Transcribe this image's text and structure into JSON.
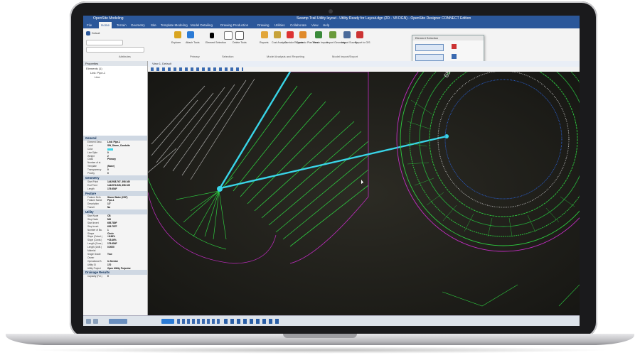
{
  "window": {
    "app_name": "OpenSite Modeling",
    "title": "Swamp Trail Utility layout - Utility Ready for Layout.dgn (2D - V8 DGN) - OpenSite Designer CONNECT Edition"
  },
  "ribbon": {
    "tabs": [
      "File",
      "Home",
      "Terrain",
      "Geometry",
      "Site",
      "Template Modeling",
      "Model Detailing",
      "Drawing Production",
      "Drawing",
      "Utilities",
      "Collaborate",
      "View",
      "Help"
    ],
    "active_tab": "Home",
    "level_value": "Default",
    "groups": [
      "Attributes",
      "Primary",
      "Selection",
      "Model Analysis and Reporting",
      "Model Import/Export"
    ],
    "buttons": [
      "Explorer",
      "Attach Tools",
      "Element Selection",
      "Delete Tools",
      "Reports",
      "Cost Analysis",
      "Corridor Reports",
      "Dynamic Plan View",
      "Terrain Import",
      "Import Geometry",
      "Import Survey",
      "Export to GIS"
    ],
    "floating_panel_title": "Element Selection"
  },
  "explorer": {
    "header": "Properties",
    "tree": [
      "Elements (1)",
      "Link: Pipe-1",
      "Line"
    ]
  },
  "properties": {
    "sections": [
      {
        "name": "General",
        "rows": [
          [
            "Element Desc.",
            "Link: Pipe-1"
          ],
          [
            "Level",
            "SW_Storm_Conduits"
          ],
          [
            "Color",
            ""
          ],
          [
            "Line Style",
            "0"
          ],
          [
            "Weight",
            "2"
          ],
          [
            "Class",
            "Primary"
          ],
          [
            "Number of st.",
            ""
          ],
          [
            "Template",
            "(None)"
          ],
          [
            "Transparency",
            "0"
          ],
          [
            "Priority",
            "0"
          ]
        ]
      },
      {
        "name": "Geometry",
        "rows": [
          [
            "Start Point",
            "1442938.767, 398 160"
          ],
          [
            "End Point",
            "1442974.528, 398 105"
          ],
          [
            "Length",
            "179.654F"
          ]
        ]
      },
      {
        "name": "Feature",
        "rows": [
          [
            "Feature Defn",
            "Storm Water (CSP)"
          ],
          [
            "Feature Name",
            "Pipe-1"
          ],
          [
            "Description",
            "12\""
          ],
          [
            "Transit",
            "No"
          ]
        ]
      },
      {
        "name": "Utility",
        "rows": [
          [
            "Start Node",
            "CB"
          ],
          [
            "Stop Node",
            "MH"
          ],
          [
            "Start Invert",
            "655.780F"
          ],
          [
            "Stop Invert",
            "639.797F"
          ],
          [
            "Number of Ba.",
            "1"
          ],
          [
            "Shape",
            "Circle"
          ],
          [
            "Slope (Calcul.)",
            "+8.98%"
          ],
          [
            "Slope (Const.)",
            "+15.46%"
          ],
          [
            "Length (Cons.)",
            "179.654F"
          ],
          [
            "Length (Unifi.)",
            "0.0000"
          ],
          [
            "Material",
            ""
          ],
          [
            "Single Grade",
            "True"
          ],
          [
            "Owner",
            ""
          ],
          [
            "Operational S.",
            "In Service"
          ],
          [
            "Utility ID",
            "170"
          ],
          [
            "Utility Project",
            "Open Utility Projector"
          ]
        ]
      },
      {
        "name": "Drainage Results",
        "rows": [
          [
            "Capacity (Ful.)",
            "0"
          ]
        ]
      }
    ]
  },
  "view": {
    "tab_label": "View 1, Default",
    "contour_label": "650.0"
  },
  "colors": {
    "ribbon_blue": "#2b579a",
    "pipe": "#39d5e8",
    "contour_green": "#2ecc40",
    "magenta": "#c02cc0"
  }
}
